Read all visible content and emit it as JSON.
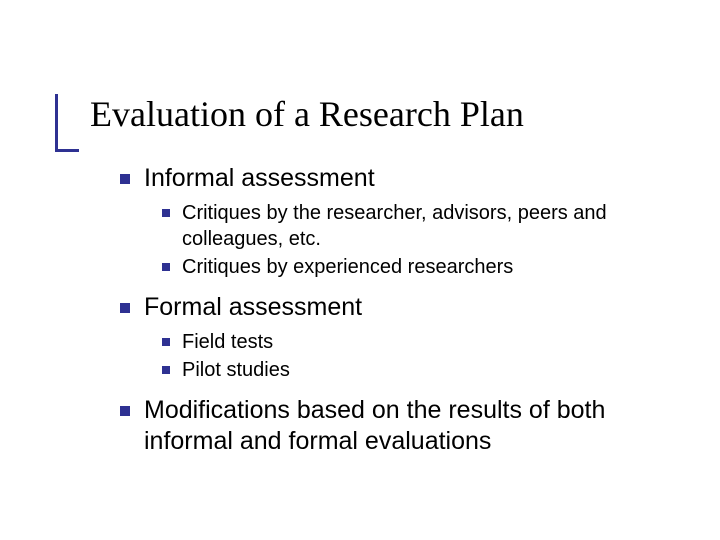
{
  "accent_color": "#2e3192",
  "title": "Evaluation of a Research Plan",
  "items": [
    {
      "text": "Informal assessment",
      "children": [
        {
          "text": "Critiques by the researcher, advisors, peers and colleagues, etc."
        },
        {
          "text": "Critiques by experienced researchers"
        }
      ]
    },
    {
      "text": "Formal assessment",
      "children": [
        {
          "text": "Field tests"
        },
        {
          "text": "Pilot studies"
        }
      ]
    },
    {
      "text": "Modifications based on the results of both informal and formal evaluations",
      "children": []
    }
  ]
}
